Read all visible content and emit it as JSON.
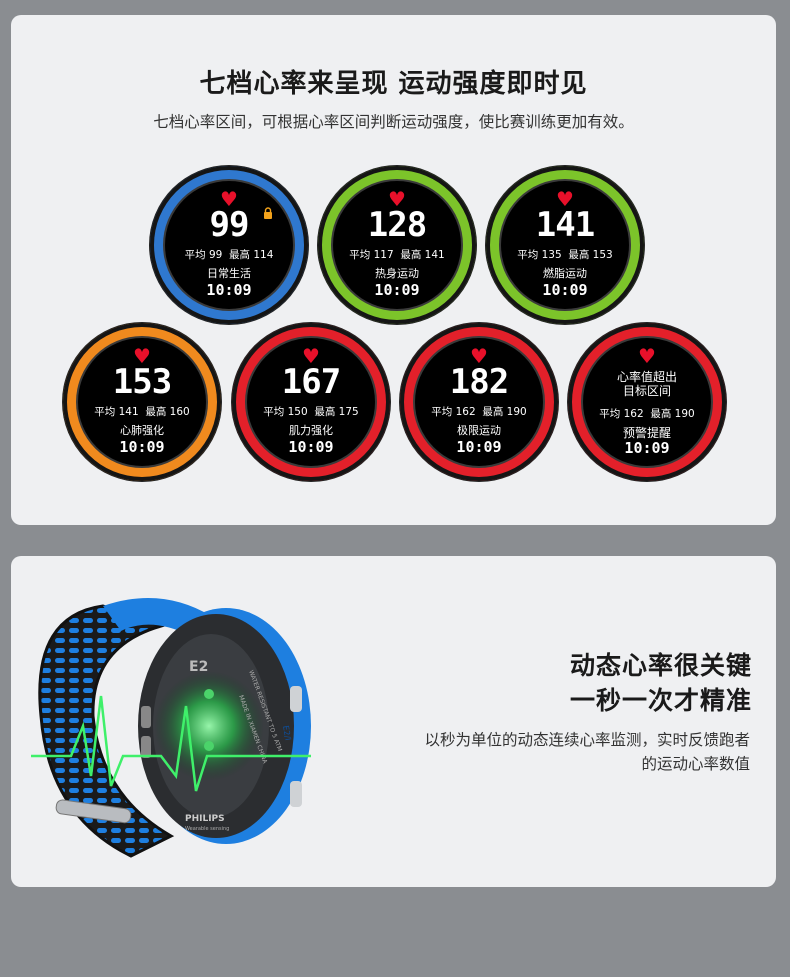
{
  "section1": {
    "title": "七档心率来呈现 运动强度即时见",
    "subtitle": "七档心率区间，可根据心率区间判断运动强度，使比赛训练更加有效。",
    "watches": [
      {
        "ring_color": "#2f78cf",
        "bpm": "99",
        "avg": "平均 99",
        "max": "最高 114",
        "mode": "日常生活",
        "time": "10:09",
        "lock_icon": "lock-icon"
      },
      {
        "ring_color": "#7cc42a",
        "bpm": "128",
        "avg": "平均 117",
        "max": "最高 141",
        "mode": "热身运动",
        "time": "10:09"
      },
      {
        "ring_color": "#7cc42a",
        "bpm": "141",
        "avg": "平均 135",
        "max": "最高 153",
        "mode": "燃脂运动",
        "time": "10:09"
      },
      {
        "ring_color": "#f08a1e",
        "bpm": "153",
        "avg": "平均 141",
        "max": "最高 160",
        "mode": "心肺强化",
        "time": "10:09"
      },
      {
        "ring_color": "#e3202a",
        "bpm": "167",
        "avg": "平均 150",
        "max": "最高 175",
        "mode": "肌力强化",
        "time": "10:09"
      },
      {
        "ring_color": "#e3202a",
        "bpm": "182",
        "avg": "平均 162",
        "max": "最高 190",
        "mode": "极限运动",
        "time": "10:09"
      },
      {
        "ring_color": "#e3202a",
        "alert_line1": "心率值超出",
        "alert_line2": "目标区间",
        "avg": "平均 162",
        "max": "最高 190",
        "mode": "预警提醒",
        "time": "10:09"
      }
    ]
  },
  "section2": {
    "heading_line1": "动态心率很关键",
    "heading_line2": "一秒一次才精准",
    "desc_line1": "以秒为单位的动态连续心率监测，实时反馈跑者",
    "desc_line2": "的运动心率数值",
    "watch_back": {
      "model": "E2",
      "brand": "PHILIPS",
      "brand_sub": "Wearable sensing",
      "engraving": "WATER RESISTANT TO 5 ATM",
      "made_in": "MADE IN XIAMEN CHINA",
      "side_mark": "E2/I"
    }
  },
  "heart_glyph": "♥"
}
